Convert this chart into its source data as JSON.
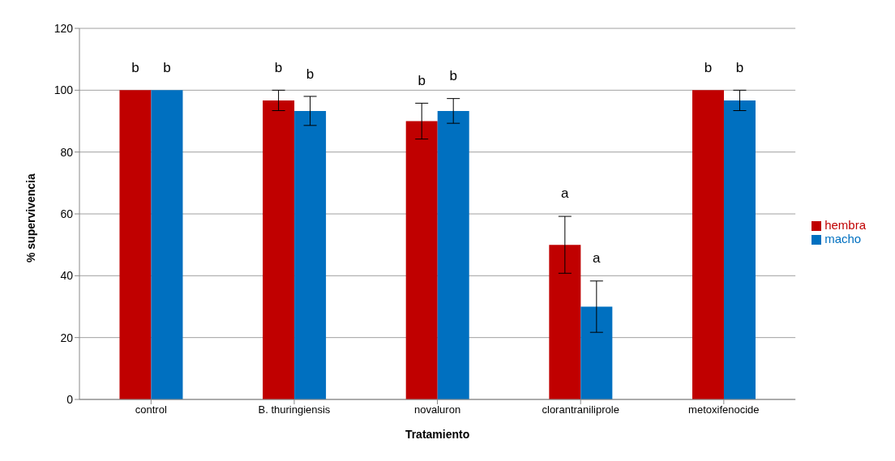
{
  "chart_data": {
    "type": "bar",
    "xlabel": "Tratamiento",
    "ylabel": "% supervivencia",
    "categories": [
      "control",
      "B. thuringiensis",
      "novaluron",
      "clorantraniliprole",
      "metoxifenocide"
    ],
    "series": [
      {
        "name": "hembra",
        "color": "#c00000",
        "values": [
          100,
          96.7,
          90,
          50,
          100
        ],
        "errors": [
          0,
          3.3,
          5.8,
          9.2,
          0
        ],
        "value_labels": [
          "b",
          "b",
          "b",
          "a",
          "b"
        ]
      },
      {
        "name": "macho",
        "color": "#0070c0",
        "values": [
          100,
          93.3,
          93.3,
          30,
          96.7
        ],
        "errors": [
          0,
          4.7,
          4,
          8.3,
          3.3
        ],
        "value_labels": [
          "b",
          "b",
          "b",
          "a",
          "b"
        ]
      }
    ],
    "ylim": [
      0,
      120
    ],
    "yticks": [
      0,
      20,
      40,
      60,
      80,
      100,
      120
    ],
    "grid": "y",
    "legend": "right"
  }
}
